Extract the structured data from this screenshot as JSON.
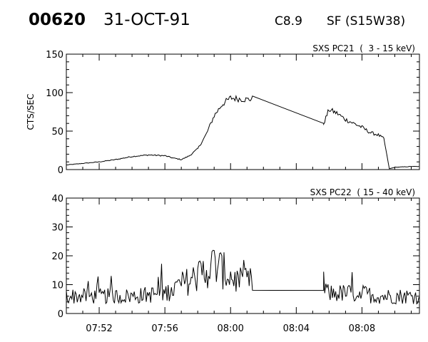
{
  "header": {
    "event_id": "00620",
    "date": "31-OCT-91",
    "goes_class": "C8.9",
    "flare": "SF (S15W38)"
  },
  "chart_data": [
    {
      "type": "line",
      "title": "SXS PC21  (  3 - 15 keV)",
      "ylabel": "CTS/SEC",
      "xlabel": "",
      "ylim": [
        0,
        150
      ],
      "yticks": [
        0,
        50,
        100,
        150
      ],
      "x_range": [
        "07:50:00",
        "08:11:30"
      ],
      "xtick_labels": [
        "07:52",
        "07:56",
        "08:00",
        "08:04",
        "08:08"
      ],
      "grid": false,
      "series": [
        {
          "x": [
            "07:50:00",
            "07:51:00",
            "07:52:00",
            "07:53:00",
            "07:54:00",
            "07:55:00",
            "07:56:00",
            "07:56:30",
            "07:57:00",
            "07:57:30",
            "07:58:00",
            "07:58:30",
            "07:59:00",
            "07:59:30",
            "08:00:00",
            "08:00:30",
            "08:01:00",
            "08:01:20",
            "08:05:40",
            "08:06:00",
            "08:06:30",
            "08:07:00",
            "08:07:30",
            "08:08:00",
            "08:08:30",
            "08:09:00",
            "08:09:20",
            "08:09:40",
            "08:10:00",
            "08:11:00",
            "08:11:30"
          ],
          "y": [
            6,
            8,
            10,
            13,
            17,
            19,
            18,
            15,
            13,
            18,
            27,
            45,
            70,
            85,
            93,
            92,
            91,
            92,
            60,
            78,
            73,
            65,
            60,
            55,
            48,
            45,
            40,
            1,
            3,
            4,
            4
          ]
        }
      ]
    },
    {
      "type": "line",
      "title": "SXS PC22  ( 15 - 40 keV)",
      "ylabel": "",
      "xlabel": "",
      "ylim": [
        0,
        40
      ],
      "yticks": [
        0,
        10,
        20,
        30,
        40
      ],
      "x_range": [
        "07:50:00",
        "08:11:30"
      ],
      "xtick_labels": [
        "07:52",
        "07:56",
        "08:00",
        "08:04",
        "08:08"
      ],
      "grid": false,
      "series": [
        {
          "x": [
            "07:50:00",
            "07:52:00",
            "07:54:00",
            "07:56:00",
            "07:57:00",
            "07:58:00",
            "07:58:30",
            "07:59:00",
            "07:59:30",
            "08:00:00",
            "08:00:30",
            "08:01:00",
            "08:01:20",
            "08:05:40",
            "08:06:00",
            "08:07:00",
            "08:08:00",
            "08:09:00",
            "08:10:00",
            "08:11:00",
            "08:11:30"
          ],
          "y": [
            6,
            6,
            6,
            7,
            10,
            13,
            15,
            17,
            15,
            13,
            11,
            11,
            11,
            8,
            7,
            7,
            7,
            6,
            6,
            6,
            6
          ]
        }
      ]
    }
  ]
}
